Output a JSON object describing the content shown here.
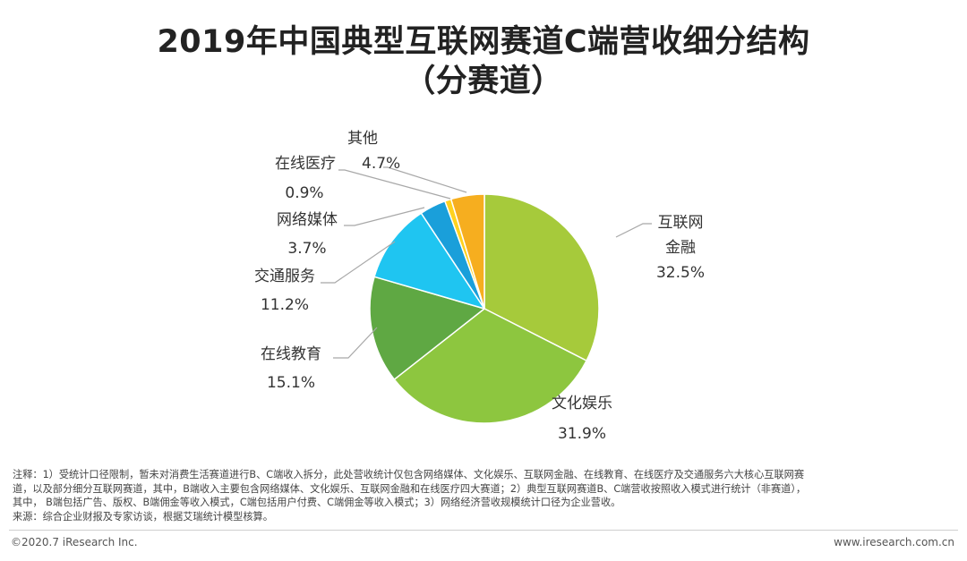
{
  "header": {
    "title_line1": "2019年中国典型互联网赛道C端营收细分结构",
    "title_line2": "（分赛道）"
  },
  "chart_data": {
    "type": "pie",
    "title": "2019年中国典型互联网赛道C端营收细分结构（分赛道）",
    "start_angle_deg": 0,
    "direction": "clockwise",
    "slices": [
      {
        "name": "互联网金融",
        "label_lines": [
          "互联网",
          "金融"
        ],
        "value": 32.5,
        "value_label": "32.5%",
        "color": "#a6ca3b"
      },
      {
        "name": "文化娱乐",
        "label_lines": [
          "文化娱乐"
        ],
        "value": 31.9,
        "value_label": "31.9%",
        "color": "#8dc63f"
      },
      {
        "name": "在线教育",
        "label_lines": [
          "在线教育"
        ],
        "value": 15.1,
        "value_label": "15.1%",
        "color": "#5fa843"
      },
      {
        "name": "交通服务",
        "label_lines": [
          "交通服务"
        ],
        "value": 11.2,
        "value_label": "11.2%",
        "color": "#1fc5f1"
      },
      {
        "name": "网络媒体",
        "label_lines": [
          "网络媒体"
        ],
        "value": 3.7,
        "value_label": "3.7%",
        "color": "#1a9fda"
      },
      {
        "name": "在线医疗",
        "label_lines": [
          "在线医疗"
        ],
        "value": 0.9,
        "value_label": "0.9%",
        "color": "#ffd21f"
      },
      {
        "name": "其他",
        "label_lines": [
          "其他"
        ],
        "value": 4.7,
        "value_label": "4.7%",
        "color": "#f6ae1f"
      }
    ]
  },
  "notes": {
    "line1": "注释：1）受统计口径限制，暂未对消费生活赛道进行B、C端收入拆分，此处营收统计仅包含网络媒体、文化娱乐、互联网金融、在线教育、在线医疗及交通服务六大核心互联网赛",
    "line2": "道，以及部分细分互联网赛道，其中，B端收入主要包含网络媒体、文化娱乐、互联网金融和在线医疗四大赛道；2）典型互联网赛道B、C端营收按照收入模式进行统计（非赛道），",
    "line3": "其中，  B端包括广告、版权、B端佣金等收入模式，C端包括用户付费、C端佣金等收入模式；3）网络经济营收规模统计口径为企业营收。",
    "line4": "来源：综合企业财报及专家访谈，根据艾瑞统计模型核算。"
  },
  "footer": {
    "copyright": "©2020.7 iResearch Inc.",
    "website": "www.iresearch.com.cn"
  }
}
